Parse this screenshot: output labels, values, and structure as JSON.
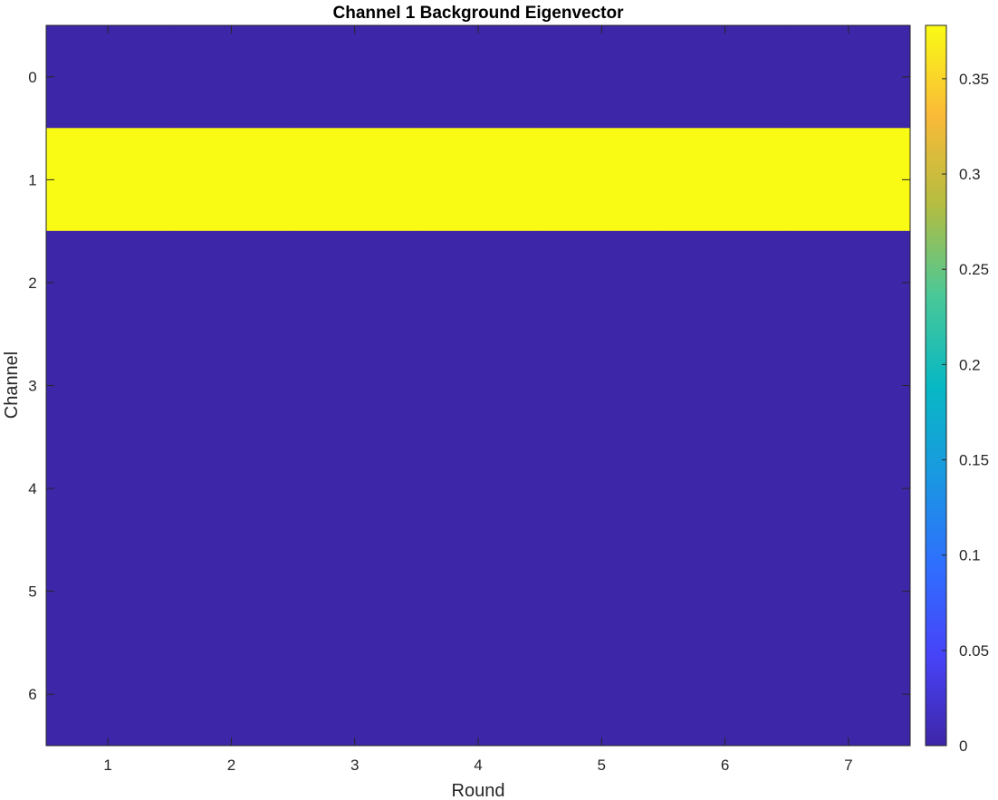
{
  "chart_data": {
    "type": "heatmap",
    "title": "Channel 1 Background Eigenvector",
    "xlabel": "Round",
    "ylabel": "Channel",
    "x": [
      1,
      2,
      3,
      4,
      5,
      6,
      7
    ],
    "y": [
      0,
      1,
      2,
      3,
      4,
      5,
      6
    ],
    "xlim": [
      0.5,
      7.5
    ],
    "ylim": [
      -0.5,
      6.5
    ],
    "y_direction": "reverse",
    "grid": false,
    "values": [
      [
        0,
        0,
        0,
        0,
        0,
        0,
        0
      ],
      [
        0.378,
        0.378,
        0.378,
        0.378,
        0.378,
        0.378,
        0.378
      ],
      [
        0,
        0,
        0,
        0,
        0,
        0,
        0
      ],
      [
        0,
        0,
        0,
        0,
        0,
        0,
        0
      ],
      [
        0,
        0,
        0,
        0,
        0,
        0,
        0
      ],
      [
        0,
        0,
        0,
        0,
        0,
        0,
        0
      ],
      [
        0,
        0,
        0,
        0,
        0,
        0,
        0
      ]
    ],
    "colorbar": {
      "position": "right",
      "colormap": "parula",
      "range": [
        0,
        0.378
      ],
      "ticks": [
        0,
        0.05,
        0.1,
        0.15,
        0.2,
        0.25,
        0.3,
        0.35
      ],
      "tick_labels": [
        "0",
        "0.05",
        "0.1",
        "0.15",
        "0.2",
        "0.25",
        "0.3",
        "0.35"
      ]
    }
  },
  "colors": {
    "parula_stops": [
      "#3e26a8",
      "#4743f8",
      "#2f6ffe",
      "#1a98e1",
      "#08b8c3",
      "#4ac897",
      "#b3bd41",
      "#faba38",
      "#f9fb15"
    ],
    "axis": "#262626"
  }
}
